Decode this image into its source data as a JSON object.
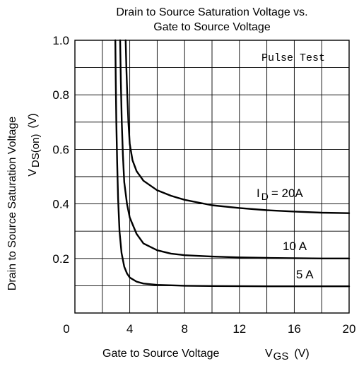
{
  "chart_data": {
    "type": "line",
    "title_line1": "Drain to Source Saturation Voltage vs.",
    "title_line2": "Gate to Source Voltage",
    "xlabel": "Gate to Source Voltage",
    "xlabel_symbol": "V",
    "xlabel_sub": "GS",
    "xlabel_unit": "(V)",
    "ylabel_line1": "Drain to Source Saturation Voltage",
    "ylabel_symbol": "V",
    "ylabel_sub": "DS(on)",
    "ylabel_unit": "(V)",
    "xlim": [
      0,
      20
    ],
    "ylim": [
      0,
      1.0
    ],
    "x_ticks": [
      0,
      4,
      8,
      12,
      16,
      20
    ],
    "x_tick_labels": [
      "0",
      "4",
      "8",
      "12",
      "16",
      "20"
    ],
    "y_ticks": [
      0.2,
      0.4,
      0.6,
      0.8,
      1.0
    ],
    "y_tick_labels": [
      "0.2",
      "0.4",
      "0.6",
      "0.8",
      "1.0"
    ],
    "x_grid_step": 2,
    "y_grid_step": 0.1,
    "grid": true,
    "annotation": "Pulse Test",
    "series": [
      {
        "name": "I D = 20A",
        "label_prefix": "I",
        "label_sub": "D",
        "label_suffix": "= 20A",
        "points": [
          [
            3.7,
            1.0
          ],
          [
            3.75,
            0.9
          ],
          [
            3.82,
            0.8
          ],
          [
            3.9,
            0.7
          ],
          [
            4.0,
            0.62
          ],
          [
            4.2,
            0.56
          ],
          [
            4.5,
            0.52
          ],
          [
            5.0,
            0.485
          ],
          [
            6.0,
            0.45
          ],
          [
            7.0,
            0.43
          ],
          [
            8.0,
            0.415
          ],
          [
            10.0,
            0.395
          ],
          [
            12.0,
            0.385
          ],
          [
            14.0,
            0.377
          ],
          [
            16.0,
            0.372
          ],
          [
            18.0,
            0.368
          ],
          [
            20.0,
            0.366
          ]
        ]
      },
      {
        "name": "10 A",
        "label_prefix": "10 A",
        "label_sub": "",
        "label_suffix": "",
        "points": [
          [
            3.3,
            1.0
          ],
          [
            3.35,
            0.85
          ],
          [
            3.42,
            0.7
          ],
          [
            3.5,
            0.58
          ],
          [
            3.6,
            0.48
          ],
          [
            3.8,
            0.4
          ],
          [
            4.0,
            0.35
          ],
          [
            4.5,
            0.29
          ],
          [
            5.0,
            0.255
          ],
          [
            6.0,
            0.23
          ],
          [
            7.0,
            0.218
          ],
          [
            8.0,
            0.212
          ],
          [
            10.0,
            0.207
          ],
          [
            12.0,
            0.204
          ],
          [
            14.0,
            0.202
          ],
          [
            16.0,
            0.201
          ],
          [
            18.0,
            0.2
          ],
          [
            20.0,
            0.2
          ]
        ]
      },
      {
        "name": "5 A",
        "label_prefix": "5 A",
        "label_sub": "",
        "label_suffix": "",
        "points": [
          [
            2.95,
            1.0
          ],
          [
            2.98,
            0.85
          ],
          [
            3.02,
            0.7
          ],
          [
            3.08,
            0.55
          ],
          [
            3.15,
            0.42
          ],
          [
            3.25,
            0.3
          ],
          [
            3.4,
            0.22
          ],
          [
            3.6,
            0.17
          ],
          [
            3.8,
            0.145
          ],
          [
            4.0,
            0.13
          ],
          [
            4.5,
            0.115
          ],
          [
            5.0,
            0.108
          ],
          [
            6.0,
            0.103
          ],
          [
            8.0,
            0.1
          ],
          [
            10.0,
            0.099
          ],
          [
            14.0,
            0.098
          ],
          [
            20.0,
            0.098
          ]
        ]
      }
    ]
  }
}
